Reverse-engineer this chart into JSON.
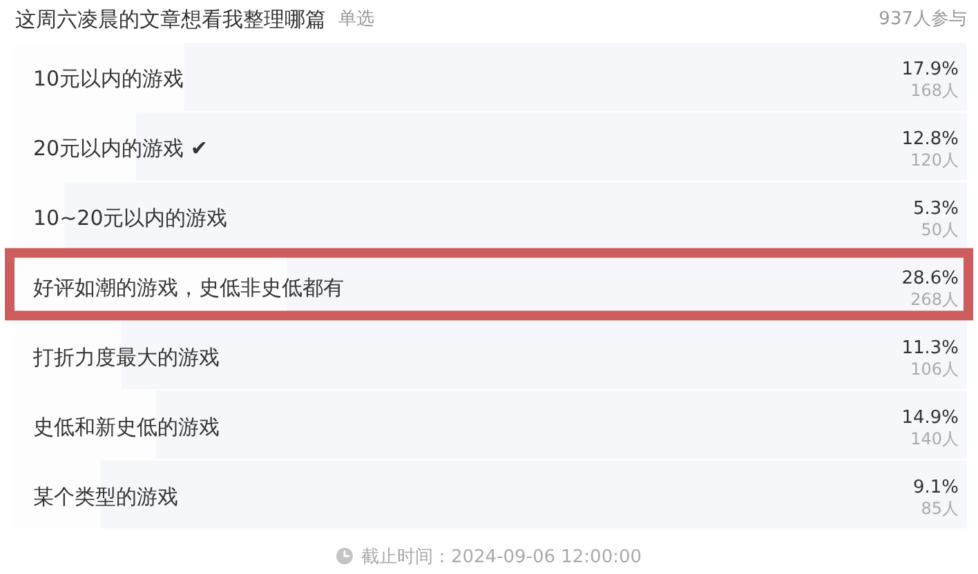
{
  "chart_data": {
    "type": "bar",
    "orientation": "horizontal",
    "title": "这周六凌晨的文章想看我整理哪篇",
    "subtitle": "单选",
    "categories": [
      "10元以内的游戏",
      "20元以内的游戏 ✔",
      "10~20元以内的游戏",
      "好评如潮的游戏，史低非史低都有",
      "打折力度最大的游戏",
      "史低和新史低的游戏",
      "某个类型的游戏"
    ],
    "values": [
      17.9,
      12.8,
      5.3,
      28.6,
      11.3,
      14.9,
      9.1
    ],
    "color": "#fdfdfe",
    "xlim": [
      0,
      100
    ],
    "value_labels": [
      "17.9%",
      "12.8%",
      "5.3%",
      "28.6%",
      "11.3%",
      "14.9%",
      "9.1%"
    ],
    "annotations": [
      "937人参与",
      "168人",
      "120人",
      "50人",
      "268人",
      "106人",
      "140人",
      "85人",
      "截止时间：2024-09-06 12:00:00"
    ]
  }
}
